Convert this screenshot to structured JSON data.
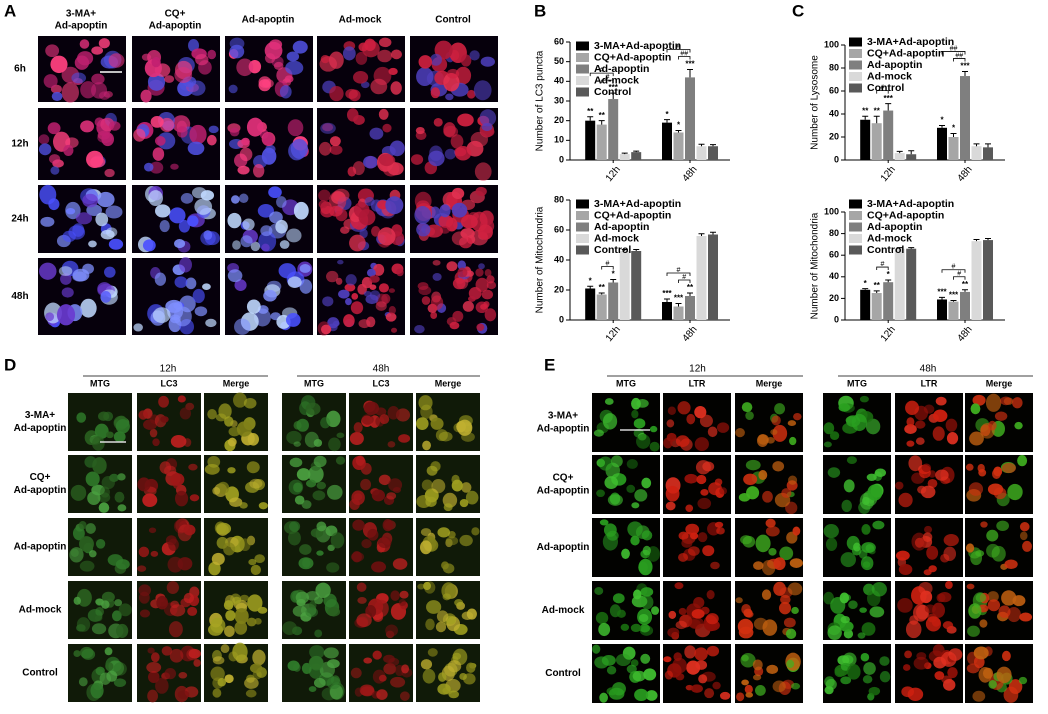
{
  "panel_A": {
    "label": "A",
    "columns": [
      [
        "3-MA+",
        "Ad-apoptin"
      ],
      [
        "CQ+",
        "Ad-apoptin"
      ],
      [
        "Ad-apoptin"
      ],
      [
        "Ad-mock"
      ],
      [
        "Control"
      ]
    ],
    "rows": [
      "6h",
      "12h",
      "24h",
      "48h"
    ]
  },
  "panel_B": {
    "label": "B"
  },
  "panel_C": {
    "label": "C"
  },
  "chart_data": [
    {
      "type": "bar",
      "y_label": "Number of LC3 puncta",
      "categories": [
        "12h",
        "48h"
      ],
      "ylim": [
        0,
        60
      ],
      "yticks": [
        0,
        10,
        20,
        30,
        40,
        50,
        60
      ],
      "series": [
        {
          "name": "3-MA+Ad-apoptin",
          "color": "#000000",
          "values": [
            20,
            19
          ],
          "errors": [
            2,
            1.5
          ],
          "significance": [
            "**",
            "*"
          ]
        },
        {
          "name": "CQ+Ad-apoptin",
          "color": "#a6a6a6",
          "values": [
            18,
            14
          ],
          "errors": [
            2,
            1
          ],
          "significance": [
            "**",
            "*"
          ]
        },
        {
          "name": "Ad-apoptin",
          "color": "#7f7f7f",
          "values": [
            31,
            42
          ],
          "errors": [
            3,
            4
          ],
          "significance": [
            "***",
            "***"
          ]
        },
        {
          "name": "Ad-mock",
          "color": "#d9d9d9",
          "values": [
            3,
            7
          ],
          "errors": [
            0.5,
            1
          ],
          "significance": [
            null,
            null
          ]
        },
        {
          "name": "Control",
          "color": "#595959",
          "values": [
            4,
            7
          ],
          "errors": [
            0.5,
            0.8
          ],
          "significance": [
            null,
            null
          ]
        }
      ],
      "comparisons": [
        {
          "category": "12h",
          "between": [
            "CQ+Ad-apoptin",
            "Ad-apoptin"
          ],
          "label": "#"
        },
        {
          "category": "12h",
          "between": [
            "3-MA+Ad-apoptin",
            "Ad-apoptin"
          ],
          "label": "#"
        },
        {
          "category": "48h",
          "between": [
            "CQ+Ad-apoptin",
            "Ad-apoptin"
          ],
          "label": "##"
        },
        {
          "category": "48h",
          "between": [
            "3-MA+Ad-apoptin",
            "Ad-apoptin"
          ],
          "label": "#"
        }
      ]
    },
    {
      "type": "bar",
      "y_label": "Number of Mitochondria",
      "categories": [
        "12h",
        "48h"
      ],
      "ylim": [
        0,
        80
      ],
      "yticks": [
        0,
        20,
        40,
        60,
        80
      ],
      "series": [
        {
          "name": "3-MA+Ad-apoptin",
          "color": "#000000",
          "values": [
            21,
            12
          ],
          "errors": [
            1.5,
            2
          ],
          "significance": [
            "*",
            "***"
          ]
        },
        {
          "name": "CQ+Ad-apoptin",
          "color": "#a6a6a6",
          "values": [
            17,
            9
          ],
          "errors": [
            1,
            2
          ],
          "significance": [
            "**",
            "***"
          ]
        },
        {
          "name": "Ad-apoptin",
          "color": "#7f7f7f",
          "values": [
            25,
            16
          ],
          "errors": [
            2,
            2
          ],
          "significance": [
            "*",
            "**"
          ]
        },
        {
          "name": "Ad-mock",
          "color": "#d9d9d9",
          "values": [
            46,
            56
          ],
          "errors": [
            1,
            1.5
          ],
          "significance": [
            null,
            null
          ]
        },
        {
          "name": "Control",
          "color": "#595959",
          "values": [
            46,
            57
          ],
          "errors": [
            1,
            1.5
          ],
          "significance": [
            null,
            null
          ]
        }
      ],
      "comparisons": [
        {
          "category": "12h",
          "between": [
            "CQ+Ad-apoptin",
            "Ad-apoptin"
          ],
          "label": "#"
        },
        {
          "category": "48h",
          "between": [
            "CQ+Ad-apoptin",
            "Ad-apoptin"
          ],
          "label": "#"
        },
        {
          "category": "48h",
          "between": [
            "3-MA+Ad-apoptin",
            "Ad-apoptin"
          ],
          "label": "#"
        }
      ]
    },
    {
      "type": "bar",
      "y_label": "Number of Lysosome",
      "categories": [
        "12h",
        "48h"
      ],
      "ylim": [
        0,
        100
      ],
      "yticks": [
        0,
        20,
        40,
        60,
        80,
        100
      ],
      "series": [
        {
          "name": "3-MA+Ad-apoptin",
          "color": "#000000",
          "values": [
            35,
            28
          ],
          "errors": [
            3,
            2
          ],
          "significance": [
            "**",
            "*"
          ]
        },
        {
          "name": "CQ+Ad-apoptin",
          "color": "#a6a6a6",
          "values": [
            32,
            20
          ],
          "errors": [
            6,
            3
          ],
          "significance": [
            "**",
            "*"
          ]
        },
        {
          "name": "Ad-apoptin",
          "color": "#7f7f7f",
          "values": [
            43,
            73
          ],
          "errors": [
            6,
            4
          ],
          "significance": [
            "***",
            "***"
          ]
        },
        {
          "name": "Ad-mock",
          "color": "#d9d9d9",
          "values": [
            6,
            12
          ],
          "errors": [
            1.5,
            2
          ],
          "significance": [
            null,
            null
          ]
        },
        {
          "name": "Control",
          "color": "#595959",
          "values": [
            5,
            11
          ],
          "errors": [
            3,
            3
          ],
          "significance": [
            null,
            null
          ]
        }
      ],
      "comparisons": [
        {
          "category": "12h",
          "between": [
            "CQ+Ad-apoptin",
            "Ad-apoptin"
          ],
          "label": "#"
        },
        {
          "category": "48h",
          "between": [
            "CQ+Ad-apoptin",
            "Ad-apoptin"
          ],
          "label": "##"
        },
        {
          "category": "48h",
          "between": [
            "3-MA+Ad-apoptin",
            "Ad-apoptin"
          ],
          "label": "##"
        }
      ]
    },
    {
      "type": "bar",
      "y_label": "Number of Mitochondria",
      "categories": [
        "12h",
        "48h"
      ],
      "ylim": [
        0,
        100
      ],
      "yticks": [
        0,
        20,
        40,
        60,
        80,
        100
      ],
      "series": [
        {
          "name": "3-MA+Ad-apoptin",
          "color": "#000000",
          "values": [
            28,
            19
          ],
          "errors": [
            1,
            2
          ],
          "significance": [
            "*",
            "***"
          ]
        },
        {
          "name": "CQ+Ad-apoptin",
          "color": "#a6a6a6",
          "values": [
            25,
            17
          ],
          "errors": [
            2,
            1
          ],
          "significance": [
            "**",
            "***"
          ]
        },
        {
          "name": "Ad-apoptin",
          "color": "#7f7f7f",
          "values": [
            35,
            26
          ],
          "errors": [
            2,
            2
          ],
          "significance": [
            "*",
            "**"
          ]
        },
        {
          "name": "Ad-mock",
          "color": "#d9d9d9",
          "values": [
            66,
            73
          ],
          "errors": [
            1,
            1.5
          ],
          "significance": [
            null,
            null
          ]
        },
        {
          "name": "Control",
          "color": "#595959",
          "values": [
            66,
            74
          ],
          "errors": [
            1,
            1.5
          ],
          "significance": [
            null,
            null
          ]
        }
      ],
      "comparisons": [
        {
          "category": "12h",
          "between": [
            "CQ+Ad-apoptin",
            "Ad-apoptin"
          ],
          "label": "#"
        },
        {
          "category": "48h",
          "between": [
            "CQ+Ad-apoptin",
            "Ad-apoptin"
          ],
          "label": "#"
        },
        {
          "category": "48h",
          "between": [
            "3-MA+Ad-apoptin",
            "Ad-apoptin"
          ],
          "label": "#"
        }
      ]
    }
  ],
  "panel_D": {
    "label": "D",
    "groups": [
      {
        "title": "12h",
        "columns": [
          "MTG",
          "LC3",
          "Merge"
        ]
      },
      {
        "title": "48h",
        "columns": [
          "MTG",
          "LC3",
          "Merge"
        ]
      }
    ],
    "rows": [
      [
        "3-MA+",
        "Ad-apoptin"
      ],
      [
        "CQ+",
        "Ad-apoptin"
      ],
      [
        "Ad-apoptin"
      ],
      [
        "Ad-mock"
      ],
      [
        "Control"
      ]
    ]
  },
  "panel_E": {
    "label": "E",
    "groups": [
      {
        "title": "12h",
        "columns": [
          "MTG",
          "LTR",
          "Merge"
        ]
      },
      {
        "title": "48h",
        "columns": [
          "MTG",
          "LTR",
          "Merge"
        ]
      }
    ],
    "rows": [
      [
        "3-MA+",
        "Ad-apoptin"
      ],
      [
        "CQ+",
        "Ad-apoptin"
      ],
      [
        "Ad-apoptin"
      ],
      [
        "Ad-mock"
      ],
      [
        "Control"
      ]
    ]
  }
}
